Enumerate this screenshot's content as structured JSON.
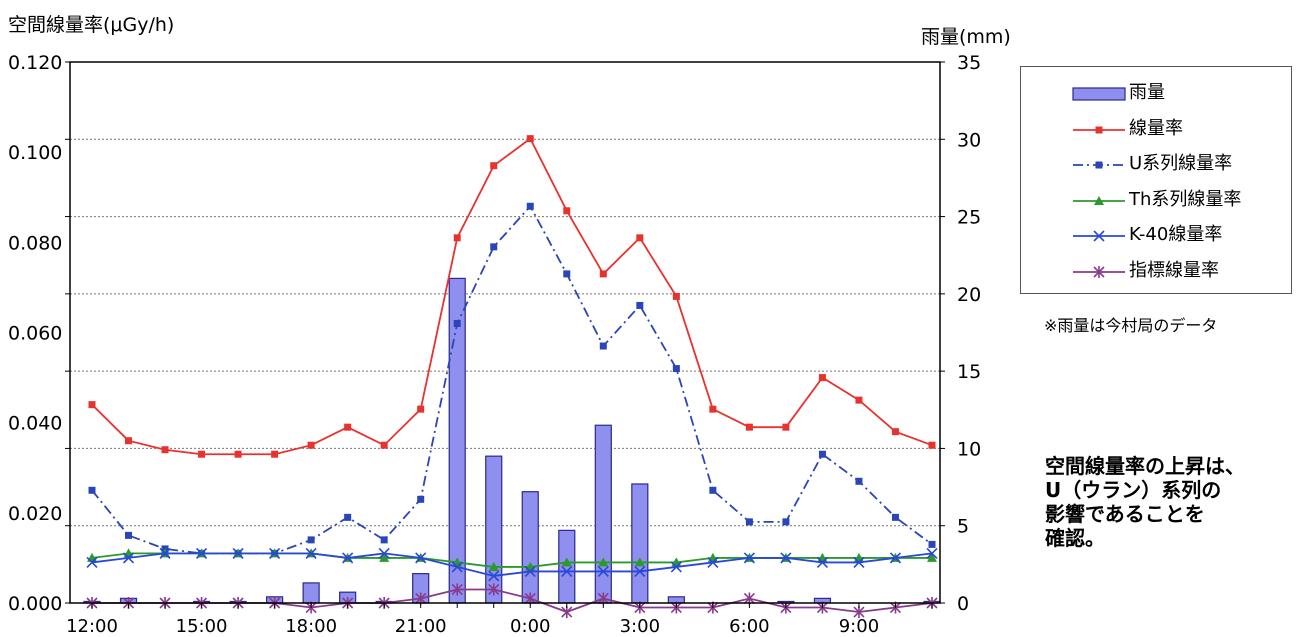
{
  "colors": {
    "rain": "#8F8FEF",
    "rain_border": "#2A2A8A",
    "dose": "#E8322E",
    "u": "#2A45B8",
    "th": "#2A9A2A",
    "k40": "#2848D8",
    "index": "#8A3A8A"
  },
  "labels": {
    "y_left_title": "空間線量率(μGy/h)",
    "y_right_title": "雨量(mm)",
    "note": "※雨量は今村局のデータ",
    "conclusion": "空間線量率の上昇は、\nU（ウラン）系列の\n影響であることを\n確認。"
  },
  "chart_data": {
    "type": "line",
    "x_hours": [
      12,
      13,
      14,
      15,
      16,
      17,
      18,
      19,
      20,
      21,
      22,
      23,
      24,
      25,
      26,
      27,
      28,
      29,
      30,
      31,
      32,
      33,
      34,
      35
    ],
    "x_ticks": [
      {
        "hour": 12,
        "label": "12:00"
      },
      {
        "hour": 15,
        "label": "15:00"
      },
      {
        "hour": 18,
        "label": "18:00"
      },
      {
        "hour": 21,
        "label": "21:00"
      },
      {
        "hour": 24,
        "label": "0:00"
      },
      {
        "hour": 27,
        "label": "3:00"
      },
      {
        "hour": 30,
        "label": "6:00"
      },
      {
        "hour": 33,
        "label": "9:00"
      }
    ],
    "y_left": {
      "min": 0.0,
      "max": 0.12,
      "ticks": [
        "0.000",
        "0.020",
        "0.040",
        "0.060",
        "0.080",
        "0.100",
        "0.120"
      ],
      "tick_values": [
        0,
        0.02,
        0.04,
        0.06,
        0.08,
        0.1,
        0.12
      ]
    },
    "y_right": {
      "min": 0,
      "max": 35,
      "ticks": [
        "0",
        "5",
        "10",
        "15",
        "20",
        "25",
        "30",
        "35"
      ],
      "tick_values": [
        0,
        5,
        10,
        15,
        20,
        25,
        30,
        35
      ]
    },
    "grid": "horizontal",
    "legend_position": "right",
    "series": [
      {
        "name": "雨量",
        "kind": "bar",
        "axis": "right",
        "color_key": "rain",
        "values": [
          0.1,
          0.3,
          0,
          0.1,
          0.1,
          0.4,
          1.3,
          0.7,
          0.1,
          1.9,
          21.0,
          9.5,
          7.2,
          4.7,
          11.5,
          7.7,
          0.4,
          0,
          0,
          0.1,
          0.3,
          0,
          0,
          0.1
        ]
      },
      {
        "name": "線量率",
        "kind": "line",
        "axis": "left",
        "color_key": "dose",
        "marker": "square",
        "dash": "",
        "values": [
          0.044,
          0.036,
          0.034,
          0.033,
          0.033,
          0.033,
          0.035,
          0.039,
          0.035,
          0.043,
          0.081,
          0.097,
          0.103,
          0.087,
          0.073,
          0.081,
          0.068,
          0.043,
          0.039,
          0.039,
          0.05,
          0.045,
          0.038,
          0.035
        ]
      },
      {
        "name": "U系列線量率",
        "kind": "line",
        "axis": "left",
        "color_key": "u",
        "marker": "square",
        "dash": "10 4 2 4",
        "values": [
          0.025,
          0.015,
          0.012,
          0.011,
          0.011,
          0.011,
          0.014,
          0.019,
          0.014,
          0.023,
          0.062,
          0.079,
          0.088,
          0.073,
          0.057,
          0.066,
          0.052,
          0.025,
          0.018,
          0.018,
          0.033,
          0.027,
          0.019,
          0.013
        ]
      },
      {
        "name": "Th系列線量率",
        "kind": "line",
        "axis": "left",
        "color_key": "th",
        "marker": "triangle",
        "dash": "",
        "values": [
          0.01,
          0.011,
          0.011,
          0.011,
          0.011,
          0.011,
          0.011,
          0.01,
          0.01,
          0.01,
          0.009,
          0.008,
          0.008,
          0.009,
          0.009,
          0.009,
          0.009,
          0.01,
          0.01,
          0.01,
          0.01,
          0.01,
          0.01,
          0.01
        ]
      },
      {
        "name": "K-40線量率",
        "kind": "line",
        "axis": "left",
        "color_key": "k40",
        "marker": "x",
        "dash": "",
        "values": [
          0.009,
          0.01,
          0.011,
          0.011,
          0.011,
          0.011,
          0.011,
          0.01,
          0.011,
          0.01,
          0.008,
          0.006,
          0.007,
          0.007,
          0.007,
          0.007,
          0.008,
          0.009,
          0.01,
          0.01,
          0.009,
          0.009,
          0.01,
          0.011
        ]
      },
      {
        "name": "指標線量率",
        "kind": "line",
        "axis": "left",
        "color_key": "index",
        "marker": "star",
        "dash": "",
        "values": [
          0.0,
          0.0,
          0.0,
          0.0,
          0.0,
          0.0,
          -0.001,
          0.0,
          0.0,
          0.001,
          0.003,
          0.003,
          0.001,
          -0.002,
          0.001,
          -0.001,
          -0.001,
          -0.001,
          0.001,
          -0.001,
          -0.001,
          -0.002,
          -0.001,
          0.0
        ]
      }
    ]
  }
}
